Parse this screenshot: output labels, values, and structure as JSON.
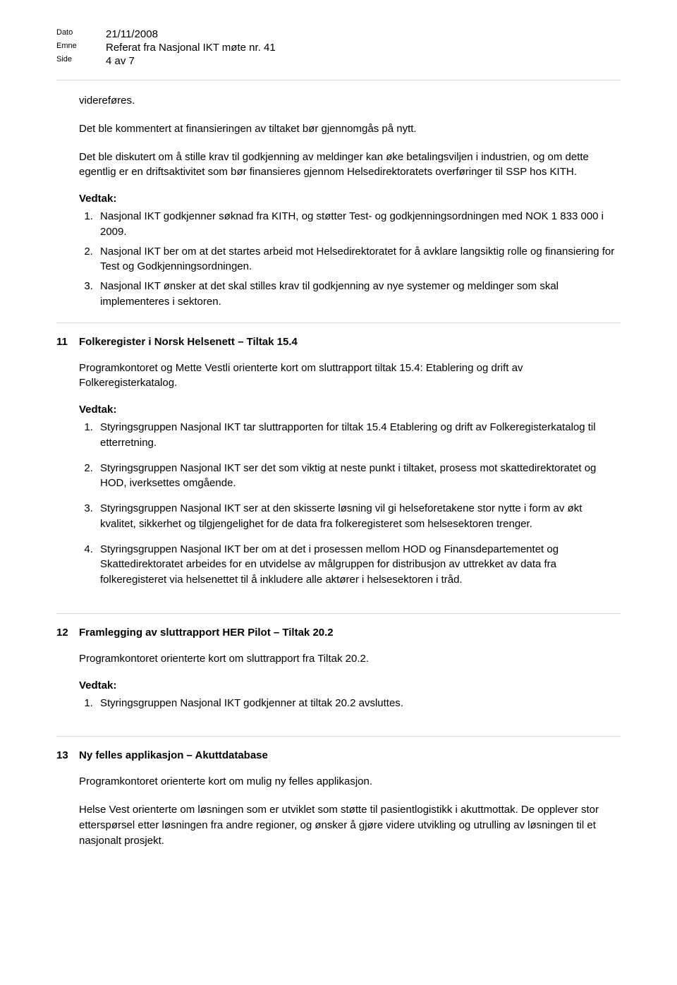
{
  "header": {
    "dato_label": "Dato",
    "dato_value": "21/11/2008",
    "emne_label": "Emne",
    "emne_value": "Referat fra Nasjonal IKT møte nr. 41",
    "side_label": "Side",
    "side_value": "4 av 7"
  },
  "pre_section": {
    "p1": "videreføres.",
    "p2": "Det ble kommentert at finansieringen av tiltaket bør gjennomgås på nytt.",
    "p3": "Det ble diskutert om å stille krav til godkjenning av meldinger kan øke betalingsviljen i industrien, og om dette egentlig er en driftsaktivitet som bør finansieres gjennom Helsedirektoratets overføringer til SSP hos KITH.",
    "vedtak_label": "Vedtak:",
    "decisions": [
      "Nasjonal IKT godkjenner søknad fra KITH, og støtter Test- og godkjenningsordningen med NOK 1 833 000 i 2009.",
      "Nasjonal IKT ber om at det startes arbeid mot Helsedirektoratet for å avklare langsiktig rolle og finansiering for Test og Godkjenningsordningen.",
      "Nasjonal IKT ønsker at det skal stilles krav til godkjenning av nye systemer og meldinger som skal implementeres i sektoren."
    ]
  },
  "section11": {
    "num": "11",
    "title": "Folkeregister i Norsk Helsenett – Tiltak 15.4",
    "p1": "Programkontoret og Mette Vestli orienterte kort om sluttrapport tiltak 15.4: Etablering og drift av Folkeregisterkatalog.",
    "vedtak_label": "Vedtak:",
    "decisions": [
      "Styringsgruppen Nasjonal IKT tar sluttrapporten for tiltak 15.4 Etablering og drift av Folkeregisterkatalog til etterretning.",
      "Styringsgruppen Nasjonal IKT ser det som viktig at neste punkt i tiltaket, prosess mot skattedirektoratet og HOD, iverksettes omgående.",
      "Styringsgruppen Nasjonal IKT ser at den skisserte løsning vil gi helseforetakene stor nytte i form av økt kvalitet, sikkerhet og tilgjengelighet for de data fra folkeregisteret som helsesektoren trenger.",
      "Styringsgruppen Nasjonal IKT ber om at det i prosessen mellom HOD og Finansdepartementet og Skattedirektoratet arbeides for en utvidelse av målgruppen for distribusjon av uttrekket av data fra folkeregisteret via helsenettet til å inkludere alle aktører i helsesektoren i tråd."
    ]
  },
  "section12": {
    "num": "12",
    "title": "Framlegging av sluttrapport HER Pilot – Tiltak 20.2",
    "p1": "Programkontoret orienterte kort om sluttrapport fra Tiltak 20.2.",
    "vedtak_label": "Vedtak:",
    "decisions": [
      "Styringsgruppen Nasjonal IKT godkjenner at tiltak 20.2 avsluttes."
    ]
  },
  "section13": {
    "num": "13",
    "title": "Ny felles applikasjon – Akuttdatabase",
    "p1": "Programkontoret orienterte kort om mulig ny felles applikasjon.",
    "p2": "Helse Vest orienterte om løsningen som er utviklet som støtte til pasientlogistikk i akuttmottak. De opplever stor etterspørsel etter løsningen fra andre regioner, og ønsker å gjøre videre utvikling og utrulling av løsningen til et nasjonalt prosjekt."
  }
}
